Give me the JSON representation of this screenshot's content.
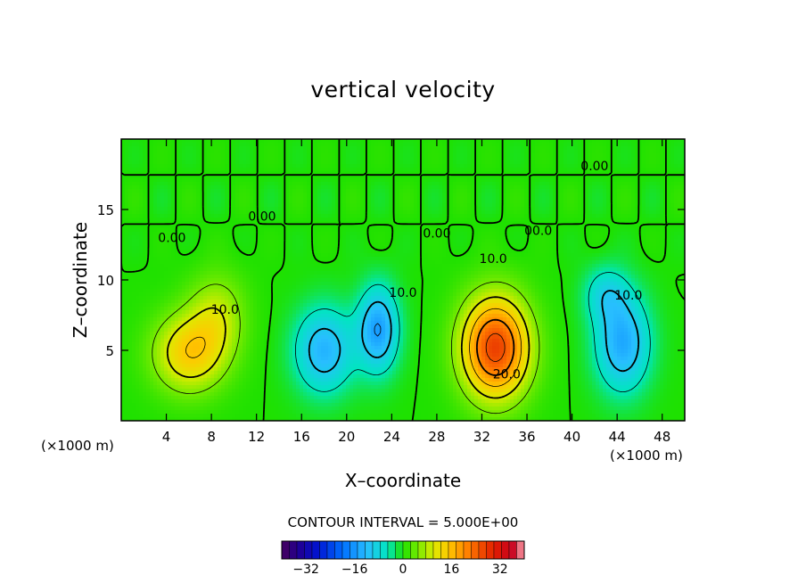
{
  "chart_data": {
    "type": "heatmap",
    "title": "vertical velocity",
    "xlabel": "X–coordinate",
    "ylabel": "Z–coordinate",
    "x_unit_label": "(×1000 m)",
    "xlim": [
      0,
      50
    ],
    "ylim": [
      0,
      20
    ],
    "x_ticks": [
      4,
      8,
      12,
      16,
      20,
      24,
      28,
      32,
      36,
      40,
      44,
      48
    ],
    "y_ticks": [
      5,
      10,
      15
    ],
    "contour_interval_text": "CONTOUR INTERVAL = 5.000E+00",
    "contour_interval": 5.0,
    "colorbar": {
      "range": [
        -40,
        40
      ],
      "ticks": [
        -32,
        -16,
        0,
        16,
        32
      ],
      "tick_labels": [
        "−32",
        "−16",
        "0",
        "16",
        "32"
      ]
    },
    "features": [
      {
        "kind": "updraft",
        "x": 6.0,
        "z": 4.8,
        "peak": 14,
        "sx": 3.2,
        "sz": 2.8
      },
      {
        "kind": "updraft",
        "x": 8.5,
        "z": 7.5,
        "peak": 8,
        "sx": 2.5,
        "sz": 3.0
      },
      {
        "kind": "downdraft",
        "x": 18.0,
        "z": 5.0,
        "peak": -13,
        "sx": 2.6,
        "sz": 3.0
      },
      {
        "kind": "downdraft",
        "x": 22.8,
        "z": 6.5,
        "peak": -15,
        "sx": 1.8,
        "sz": 3.0
      },
      {
        "kind": "updraft",
        "x": 33.2,
        "z": 5.2,
        "peak": 27,
        "sx": 3.0,
        "sz": 3.6
      },
      {
        "kind": "downdraft",
        "x": 44.5,
        "z": 5.5,
        "peak": -14,
        "sx": 2.4,
        "sz": 3.4
      },
      {
        "kind": "downdraft",
        "x": 43.0,
        "z": 9.0,
        "peak": -7,
        "sx": 2.0,
        "sz": 2.0
      }
    ],
    "contour_labels": [
      {
        "text": "0.00",
        "x": 4.5,
        "z": 12.7
      },
      {
        "text": "10.0",
        "x": 9.2,
        "z": 7.6
      },
      {
        "text": "0.00",
        "x": 12.5,
        "z": 14.2
      },
      {
        "text": "10.0",
        "x": 25.0,
        "z": 8.8
      },
      {
        "text": "0.00",
        "x": 28.0,
        "z": 13.0
      },
      {
        "text": "10.0",
        "x": 33.0,
        "z": 11.2
      },
      {
        "text": "20.0",
        "x": 34.2,
        "z": 3.0
      },
      {
        "text": "00.0",
        "x": 37.0,
        "z": 13.2
      },
      {
        "text": "0.00",
        "x": 42.0,
        "z": 17.8
      },
      {
        "text": "10.0",
        "x": 45.0,
        "z": 8.6
      }
    ]
  },
  "colors": {
    "background": "#ffffff",
    "neutral": "#22e000",
    "warm_peak": "#e02000",
    "cool_peak": "#1a70ff"
  }
}
